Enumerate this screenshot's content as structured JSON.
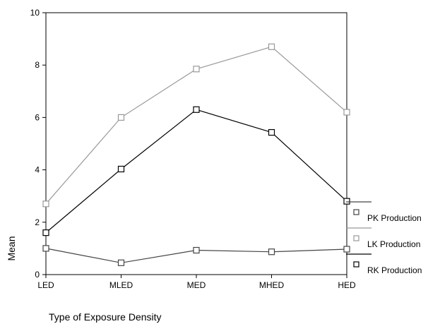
{
  "chart_data": {
    "type": "line",
    "title": "",
    "xlabel": "Type of Exposure Density",
    "ylabel": "Mean",
    "categories": [
      "LED",
      "MLED",
      "MED",
      "MHED",
      "HED"
    ],
    "ylim": [
      0,
      10
    ],
    "yticks": [
      0,
      2,
      4,
      6,
      8,
      10
    ],
    "grid": false,
    "legend_position": "right",
    "series": [
      {
        "name": "PK Production",
        "values": [
          1.0,
          0.45,
          0.93,
          0.87,
          0.97
        ],
        "color": "#444444"
      },
      {
        "name": "LK Production",
        "values": [
          2.7,
          6.0,
          7.85,
          8.7,
          6.2
        ],
        "color": "#999999"
      },
      {
        "name": "RK Production",
        "values": [
          1.6,
          4.03,
          6.3,
          5.43,
          2.8
        ],
        "color": "#000000"
      }
    ]
  }
}
